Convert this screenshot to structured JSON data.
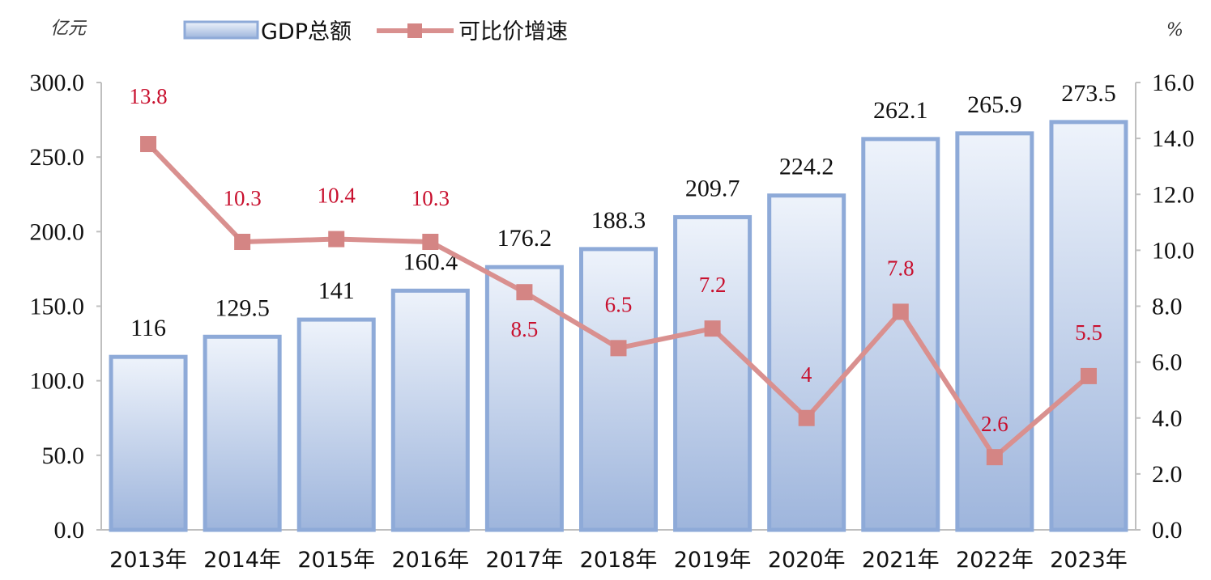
{
  "chart_data": {
    "type": "bar",
    "categories": [
      "2013年",
      "2014年",
      "2015年",
      "2016年",
      "2017年",
      "2018年",
      "2019年",
      "2020年",
      "2021年",
      "2022年",
      "2023年"
    ],
    "series": [
      {
        "name": "GDP总额",
        "type": "bar",
        "axis": "left",
        "values": [
          116,
          129.5,
          141,
          160.4,
          176.2,
          188.3,
          209.7,
          224.2,
          262.1,
          265.9,
          273.5
        ],
        "labels": [
          "116",
          "129.5",
          "141",
          "160.4",
          "176.2",
          "188.3",
          "209.7",
          "224.2",
          "262.1",
          "265.9",
          "273.5"
        ]
      },
      {
        "name": "可比价增速",
        "type": "line",
        "axis": "right",
        "values": [
          13.8,
          10.3,
          10.4,
          10.3,
          8.5,
          6.5,
          7.2,
          4,
          7.8,
          2.6,
          5.5
        ],
        "labels": [
          "13.8",
          "10.3",
          "10.4",
          "10.3",
          "8.5",
          "6.5",
          "7.2",
          "4",
          "7.8",
          "2.6",
          "5.5"
        ]
      }
    ],
    "y_left": {
      "unit": "亿元",
      "ylim": [
        0,
        300
      ],
      "ticks": [
        "0.0",
        "50.0",
        "100.0",
        "150.0",
        "200.0",
        "250.0",
        "300.0"
      ]
    },
    "y_right": {
      "unit": "%",
      "ylim": [
        0,
        16
      ],
      "ticks": [
        "0.0",
        "2.0",
        "4.0",
        "6.0",
        "8.0",
        "10.0",
        "12.0",
        "14.0",
        "16.0"
      ]
    },
    "grid": false,
    "legend_position": "top",
    "colors": {
      "bar_fill_top": "#eef3fb",
      "bar_fill_bottom": "#9eb5dc",
      "bar_border": "#8eaad8",
      "line": "#d9908f",
      "marker": "#d48584",
      "line_label": "#c8102e"
    }
  }
}
